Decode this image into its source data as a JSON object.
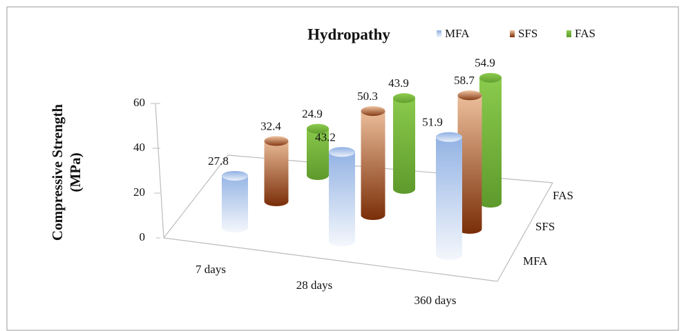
{
  "chart_data": {
    "type": "bar3d",
    "title": "Hydropathy",
    "ylabel": [
      "Compressive Strength",
      "(MPa)"
    ],
    "categories": [
      "7 days",
      "28 days",
      "360 days"
    ],
    "series": [
      {
        "name": "MFA",
        "color": "#9db8e6",
        "values": [
          27.8,
          43.2,
          51.9
        ]
      },
      {
        "name": "SFS",
        "color": "#c0602a",
        "values": [
          32.4,
          50.3,
          58.7
        ]
      },
      {
        "name": "FAS",
        "color": "#7ab648",
        "values": [
          24.9,
          43.9,
          54.9
        ]
      }
    ],
    "ylim": [
      0,
      60
    ],
    "yticks": [
      0,
      20,
      40,
      60
    ]
  }
}
